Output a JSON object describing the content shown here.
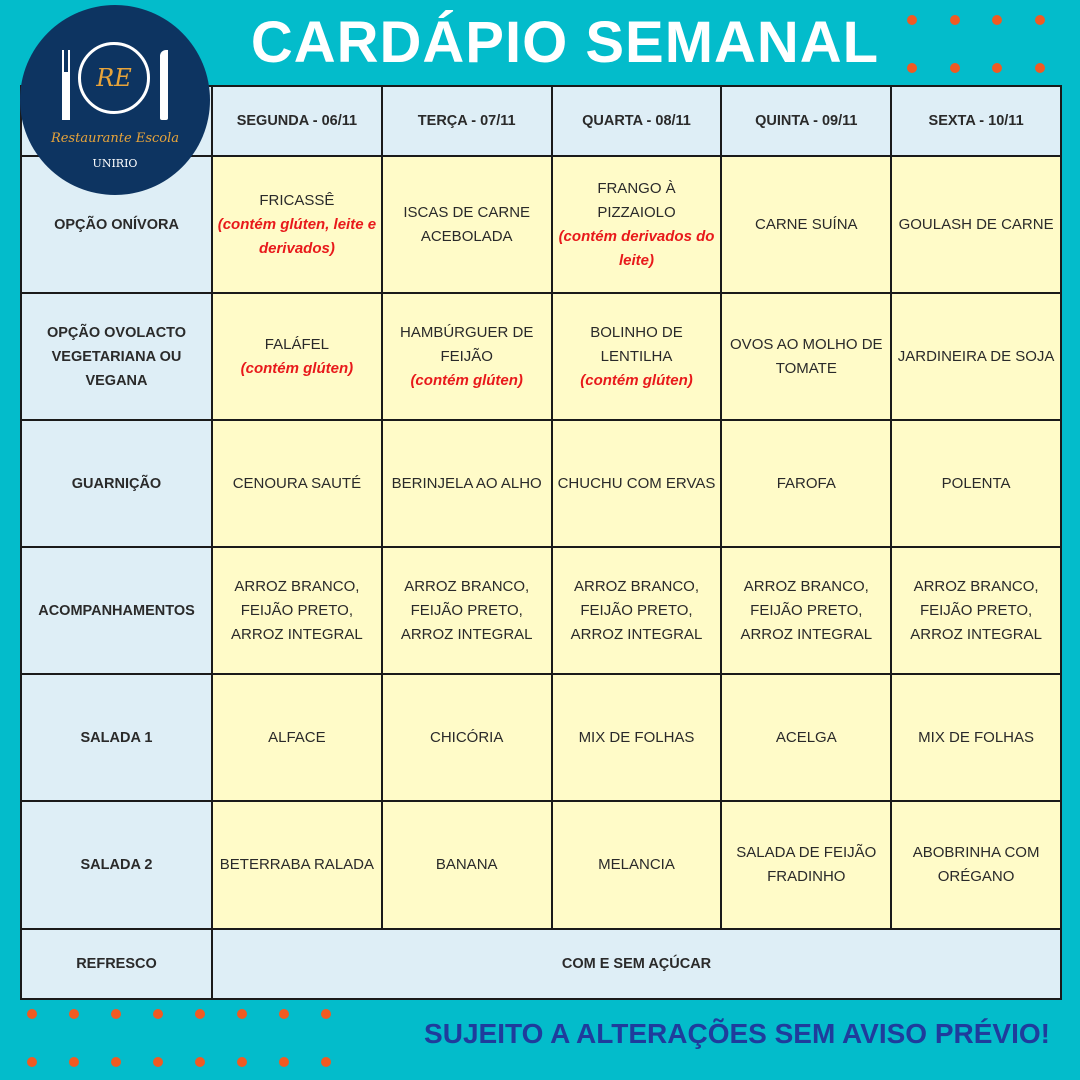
{
  "title": "CARDÁPIO SEMANAL",
  "logo": {
    "initials": "RE",
    "name": "Restaurante Escola",
    "institution": "UNIRIO"
  },
  "colors": {
    "background": "#03bccb",
    "logo": "#0d3461",
    "dots": "#f05a22",
    "header_cell": "#deeef6",
    "body_cell": "#fffbc8",
    "allergen": "#e8191b",
    "footer": "#1f3c9c"
  },
  "days": [
    "SEGUNDA - 06/11",
    "TERÇA - 07/11",
    "QUARTA - 08/11",
    "QUINTA - 09/11",
    "SEXTA - 10/11"
  ],
  "rows": [
    {
      "label": "OPÇÃO ONÍVORA",
      "cells": [
        {
          "dish": "FRICASSÊ",
          "note": "(contém glúten, leite e derivados)"
        },
        {
          "dish": "ISCAS DE CARNE ACEBOLADA"
        },
        {
          "dish": "FRANGO À PIZZAIOLO",
          "note": "(contém derivados do leite)"
        },
        {
          "dish": "CARNE SUÍNA"
        },
        {
          "dish": "GOULASH DE CARNE"
        }
      ]
    },
    {
      "label": "OPÇÃO OVOLACTO VEGETARIANA OU VEGANA",
      "cells": [
        {
          "dish": "FALÁFEL",
          "note": "(contém glúten)"
        },
        {
          "dish": "HAMBÚRGUER DE FEIJÃO",
          "note": "(contém glúten)"
        },
        {
          "dish": "BOLINHO DE LENTILHA",
          "note": "(contém glúten)"
        },
        {
          "dish": "OVOS AO MOLHO DE TOMATE"
        },
        {
          "dish": "JARDINEIRA DE SOJA"
        }
      ]
    },
    {
      "label": "GUARNIÇÃO",
      "cells": [
        {
          "dish": "CENOURA SAUTÉ"
        },
        {
          "dish": "BERINJELA AO ALHO"
        },
        {
          "dish": "CHUCHU COM ERVAS"
        },
        {
          "dish": "FAROFA"
        },
        {
          "dish": "POLENTA"
        }
      ]
    },
    {
      "label": "ACOMPANHAMENTOS",
      "cells": [
        {
          "dish": "ARROZ BRANCO, FEIJÃO PRETO, ARROZ INTEGRAL"
        },
        {
          "dish": "ARROZ BRANCO, FEIJÃO PRETO, ARROZ INTEGRAL"
        },
        {
          "dish": "ARROZ BRANCO, FEIJÃO PRETO, ARROZ INTEGRAL"
        },
        {
          "dish": "ARROZ BRANCO, FEIJÃO PRETO, ARROZ INTEGRAL"
        },
        {
          "dish": "ARROZ BRANCO, FEIJÃO PRETO, ARROZ INTEGRAL"
        }
      ]
    },
    {
      "label": "SALADA 1",
      "cells": [
        {
          "dish": "ALFACE"
        },
        {
          "dish": "CHICÓRIA"
        },
        {
          "dish": "MIX DE FOLHAS"
        },
        {
          "dish": "ACELGA"
        },
        {
          "dish": "MIX DE FOLHAS"
        }
      ]
    },
    {
      "label": "SALADA 2",
      "cells": [
        {
          "dish": "BETERRABA RALADA"
        },
        {
          "dish": "BANANA"
        },
        {
          "dish": "MELANCIA"
        },
        {
          "dish": "SALADA DE FEIJÃO FRADINHO"
        },
        {
          "dish": "ABOBRINHA COM ORÉGANO"
        }
      ]
    }
  ],
  "refresco": {
    "label": "REFRESCO",
    "value": "COM E SEM AÇÚCAR"
  },
  "footer": "SUJEITO A ALTERAÇÕES SEM AVISO PRÉVIO!"
}
